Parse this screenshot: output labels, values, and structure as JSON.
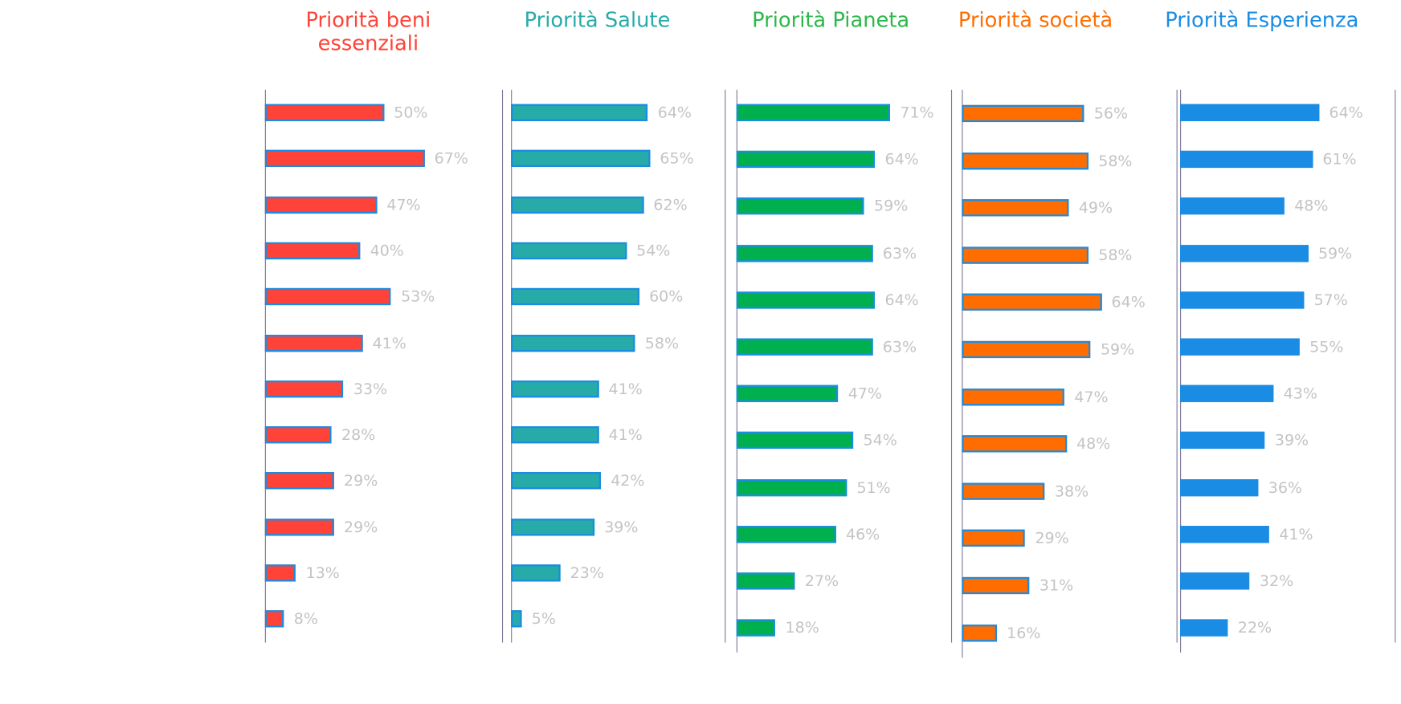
{
  "chart_data": [
    {
      "type": "bar",
      "orientation": "horizontal",
      "title": "Priorità beni essenziali",
      "color": "#ff4338",
      "values": [
        50,
        67,
        47,
        40,
        53,
        41,
        33,
        28,
        29,
        29,
        13,
        8
      ],
      "labels": [
        "50%",
        "67%",
        "47%",
        "40%",
        "53%",
        "41%",
        "33%",
        "28%",
        "29%",
        "29%",
        "13%",
        "8%"
      ]
    },
    {
      "type": "bar",
      "orientation": "horizontal",
      "title": "Priorità Salute",
      "color": "#27aba9",
      "values": [
        64,
        65,
        62,
        54,
        60,
        58,
        41,
        41,
        42,
        39,
        23,
        5
      ],
      "labels": [
        "64%",
        "65%",
        "62%",
        "54%",
        "60%",
        "58%",
        "41%",
        "41%",
        "42%",
        "39%",
        "23%",
        "5%"
      ]
    },
    {
      "type": "bar",
      "orientation": "horizontal",
      "title": "Priorità Pianeta",
      "color": "#00b04f",
      "title_color": "#2cb84a",
      "values": [
        71,
        64,
        59,
        63,
        64,
        63,
        47,
        54,
        51,
        46,
        27,
        18
      ],
      "labels": [
        "71%",
        "64%",
        "59%",
        "63%",
        "64%",
        "63%",
        "47%",
        "54%",
        "51%",
        "46%",
        "27%",
        "18%"
      ]
    },
    {
      "type": "bar",
      "orientation": "horizontal",
      "title": "Priorità società",
      "color": "#ff6d00",
      "values": [
        56,
        58,
        49,
        58,
        64,
        59,
        47,
        48,
        38,
        29,
        31,
        16
      ],
      "labels": [
        "56%",
        "58%",
        "49%",
        "58%",
        "64%",
        "59%",
        "47%",
        "48%",
        "38%",
        "29%",
        "31%",
        "16%"
      ]
    },
    {
      "type": "bar",
      "orientation": "horizontal",
      "title": "Priorità Esperienza",
      "color": "#1a8ce3",
      "values": [
        64,
        61,
        48,
        59,
        57,
        55,
        43,
        39,
        36,
        41,
        32,
        22
      ],
      "labels": [
        "64%",
        "61%",
        "48%",
        "59%",
        "57%",
        "55%",
        "43%",
        "39%",
        "36%",
        "41%",
        "32%",
        "22%"
      ]
    }
  ]
}
